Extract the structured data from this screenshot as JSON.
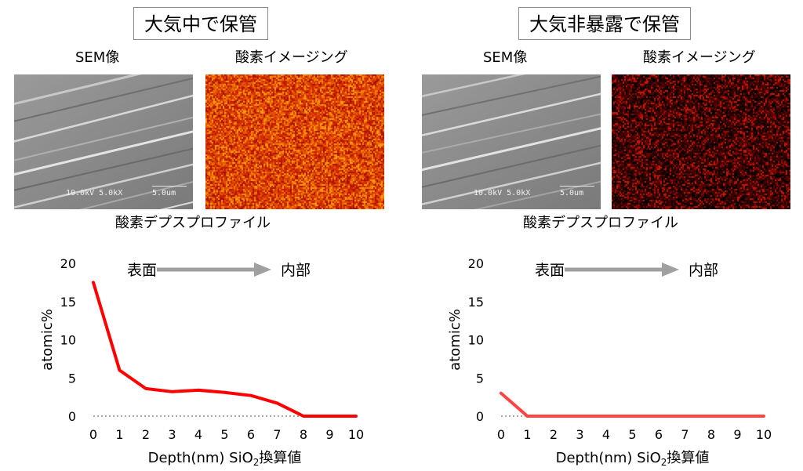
{
  "panels": [
    {
      "condition": "大気中で保管",
      "sem_label": "SEM像",
      "oxygen_label": "酸素イメージング",
      "sem_caption": "10.0kV 5.0kX",
      "sem_scale": "5.0um",
      "depth_title": "酸素デプスプロファイル"
    },
    {
      "condition": "大気非暴露で保管",
      "sem_label": "SEM像",
      "oxygen_label": "酸素イメージング",
      "sem_caption": "10.0kV 5.0kX",
      "sem_scale": "5.0um",
      "depth_title": "酸素デプスプロファイル"
    }
  ],
  "chart_data": [
    {
      "type": "line",
      "x": [
        0,
        1,
        2,
        3,
        4,
        5,
        6,
        7,
        8,
        9,
        10
      ],
      "series": [
        {
          "values": [
            17.5,
            6.0,
            3.6,
            3.2,
            3.4,
            3.1,
            2.7,
            1.7,
            0,
            0,
            0
          ]
        }
      ],
      "ylabel": "atomic%",
      "xlabel": "Depth(nm) SiO2換算値",
      "xlim": [
        0,
        10
      ],
      "ylim": [
        0,
        20
      ],
      "yticks": [
        0,
        5,
        10,
        15,
        20
      ],
      "xticks": [
        0,
        1,
        2,
        3,
        4,
        5,
        6,
        7,
        8,
        9,
        10
      ],
      "annotation_left": "表面",
      "annotation_right": "内部",
      "line_color": "#ff0000"
    },
    {
      "type": "line",
      "x": [
        0,
        1,
        2,
        3,
        4,
        5,
        6,
        7,
        8,
        9,
        10
      ],
      "series": [
        {
          "values": [
            3.0,
            0,
            0,
            0,
            0,
            0,
            0,
            0,
            0,
            0,
            0
          ]
        }
      ],
      "ylabel": "atomic%",
      "xlabel": "Depth(nm) SiO2換算値",
      "xlim": [
        0,
        10
      ],
      "ylim": [
        0,
        20
      ],
      "yticks": [
        0,
        5,
        10,
        15,
        20
      ],
      "xticks": [
        0,
        1,
        2,
        3,
        4,
        5,
        6,
        7,
        8,
        9,
        10
      ],
      "annotation_left": "表面",
      "annotation_right": "内部",
      "line_color": "#ff4444"
    }
  ]
}
